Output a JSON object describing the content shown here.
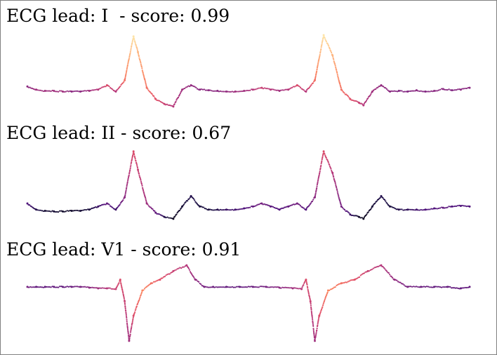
{
  "chart_data": [
    {
      "type": "scatter",
      "title": "ECG lead: I  - score: 0.99",
      "lead": "I",
      "score": 0.99,
      "x": [
        0,
        0.02,
        0.04,
        0.06,
        0.08,
        0.1,
        0.12,
        0.14,
        0.16,
        0.18,
        0.2,
        0.22,
        0.24,
        0.25,
        0.27,
        0.29,
        0.31,
        0.33,
        0.35,
        0.37,
        0.39,
        0.41,
        0.43,
        0.45,
        0.47,
        0.49,
        0.51,
        0.53,
        0.55,
        0.57,
        0.59,
        0.61,
        0.63,
        0.65,
        0.67,
        0.69,
        0.71,
        0.73,
        0.75,
        0.76,
        0.78,
        0.8,
        0.82,
        0.84,
        0.86,
        0.88,
        0.9,
        0.92,
        0.94,
        0.96,
        0.98,
        1
      ],
      "y": [
        0.1,
        0.05,
        0.03,
        0.03,
        0.02,
        0.02,
        0.02,
        0.03,
        0.05,
        0.12,
        0.02,
        0.2,
        0.9,
        0.65,
        0.08,
        -0.1,
        -0.18,
        -0.22,
        0.05,
        0.12,
        0.05,
        0.04,
        0.03,
        0.02,
        0.02,
        0.03,
        0.05,
        0.08,
        0.05,
        0.03,
        0.05,
        0.12,
        0.02,
        0.2,
        0.92,
        0.6,
        0.05,
        -0.1,
        -0.16,
        -0.2,
        0.02,
        0.12,
        0.02,
        0.03,
        0.02,
        0.04,
        0.02,
        0.03,
        0.06,
        0.04,
        0.05,
        0.08
      ],
      "ylim": [
        -0.3,
        1.0
      ],
      "color_values": [
        0.4,
        0.45,
        0.45,
        0.45,
        0.45,
        0.4,
        0.4,
        0.45,
        0.5,
        0.6,
        0.5,
        0.7,
        0.95,
        0.85,
        0.7,
        0.62,
        0.55,
        0.5,
        0.45,
        0.42,
        0.4,
        0.4,
        0.4,
        0.42,
        0.45,
        0.45,
        0.5,
        0.55,
        0.5,
        0.45,
        0.5,
        0.6,
        0.5,
        0.7,
        0.95,
        0.85,
        0.7,
        0.62,
        0.55,
        0.5,
        0.45,
        0.42,
        0.4,
        0.38,
        0.38,
        0.4,
        0.38,
        0.4,
        0.4,
        0.38,
        0.4,
        0.4
      ]
    },
    {
      "type": "scatter",
      "title": "ECG lead: II - score: 0.67",
      "lead": "II",
      "score": 0.67,
      "x": [
        0,
        0.02,
        0.04,
        0.06,
        0.08,
        0.1,
        0.12,
        0.14,
        0.16,
        0.18,
        0.2,
        0.22,
        0.24,
        0.25,
        0.27,
        0.29,
        0.31,
        0.33,
        0.35,
        0.37,
        0.39,
        0.41,
        0.43,
        0.45,
        0.47,
        0.49,
        0.51,
        0.53,
        0.55,
        0.57,
        0.59,
        0.61,
        0.63,
        0.65,
        0.67,
        0.69,
        0.71,
        0.73,
        0.75,
        0.76,
        0.78,
        0.8,
        0.82,
        0.84,
        0.86,
        0.88,
        0.9,
        0.92,
        0.94,
        0.96,
        0.98,
        1
      ],
      "y": [
        0.1,
        0.0,
        -0.02,
        -0.03,
        -0.03,
        -0.02,
        -0.02,
        0.0,
        0.05,
        0.1,
        0.0,
        0.2,
        0.95,
        0.65,
        0.1,
        -0.05,
        -0.12,
        -0.15,
        0.05,
        0.22,
        0.05,
        0.0,
        0.0,
        0.0,
        0.0,
        0.02,
        0.05,
        0.1,
        0.05,
        0.0,
        0.05,
        0.1,
        0.0,
        0.2,
        0.95,
        0.6,
        0.05,
        -0.08,
        -0.12,
        -0.15,
        0.05,
        0.22,
        0.05,
        0.0,
        0.0,
        0.0,
        0.0,
        0.02,
        0.03,
        0.05,
        0.06,
        0.05
      ],
      "ylim": [
        -0.3,
        1.05
      ],
      "color_values": [
        0.25,
        0.15,
        0.1,
        0.1,
        0.08,
        0.08,
        0.1,
        0.12,
        0.2,
        0.3,
        0.2,
        0.4,
        0.6,
        0.55,
        0.45,
        0.3,
        0.15,
        0.05,
        0.1,
        0.15,
        0.12,
        0.12,
        0.15,
        0.2,
        0.22,
        0.25,
        0.3,
        0.35,
        0.28,
        0.25,
        0.3,
        0.35,
        0.25,
        0.4,
        0.6,
        0.5,
        0.35,
        0.2,
        0.08,
        0.05,
        0.1,
        0.15,
        0.12,
        0.15,
        0.18,
        0.22,
        0.25,
        0.25,
        0.3,
        0.25,
        0.25,
        0.25
      ]
    },
    {
      "type": "scatter",
      "title": "ECG lead: V1 - score: 0.91",
      "lead": "V1",
      "score": 0.91,
      "x": [
        0,
        0.02,
        0.04,
        0.06,
        0.08,
        0.1,
        0.12,
        0.14,
        0.16,
        0.18,
        0.2,
        0.21,
        0.22,
        0.23,
        0.24,
        0.26,
        0.28,
        0.3,
        0.33,
        0.36,
        0.38,
        0.4,
        0.42,
        0.45,
        0.48,
        0.51,
        0.54,
        0.57,
        0.6,
        0.62,
        0.63,
        0.64,
        0.65,
        0.66,
        0.68,
        0.71,
        0.74,
        0.77,
        0.8,
        0.83,
        0.86,
        0.89,
        0.92,
        0.95,
        0.98,
        1
      ],
      "y": [
        0.0,
        0.0,
        0.0,
        0.0,
        0.0,
        0.0,
        0.0,
        -0.01,
        -0.02,
        -0.02,
        -0.03,
        0.1,
        -0.2,
        -0.75,
        -0.4,
        -0.05,
        0.05,
        0.1,
        0.22,
        0.3,
        0.1,
        0.0,
        0.0,
        0.0,
        0.0,
        0.0,
        0.0,
        -0.01,
        -0.02,
        -0.03,
        0.1,
        -0.2,
        -0.75,
        -0.4,
        -0.05,
        0.05,
        0.1,
        0.22,
        0.3,
        0.1,
        0.0,
        0.0,
        0.0,
        0.0,
        -0.02,
        0.0
      ],
      "ylim": [
        -0.8,
        0.35
      ],
      "color_values": [
        0.35,
        0.3,
        0.3,
        0.3,
        0.3,
        0.32,
        0.35,
        0.4,
        0.45,
        0.5,
        0.55,
        0.6,
        0.55,
        0.45,
        0.6,
        0.75,
        0.7,
        0.62,
        0.55,
        0.5,
        0.42,
        0.35,
        0.32,
        0.3,
        0.3,
        0.32,
        0.35,
        0.4,
        0.45,
        0.5,
        0.6,
        0.55,
        0.45,
        0.6,
        0.75,
        0.7,
        0.62,
        0.55,
        0.5,
        0.42,
        0.35,
        0.32,
        0.3,
        0.3,
        0.3,
        0.3
      ]
    }
  ]
}
